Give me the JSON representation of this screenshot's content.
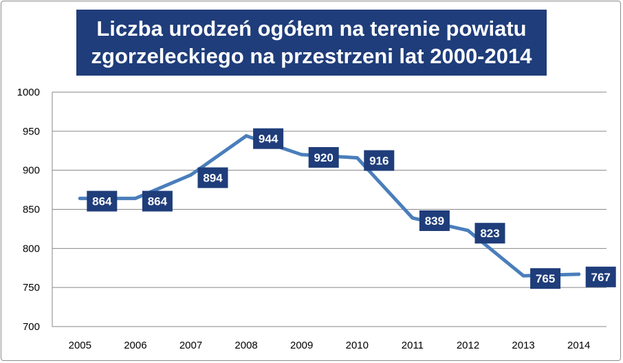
{
  "title_lines": [
    "Liczba urodzeń ogółem na terenie powiatu",
    "zgorzeleckiego na przestrzeni lat 2000-2014"
  ],
  "colors": {
    "line": "#4a7ebb",
    "label_bg": "#1f3d7a",
    "label_text": "#ffffff",
    "grid": "#868686",
    "title_bg": "#1f3d7a"
  },
  "chart_data": {
    "type": "line",
    "title": "Liczba urodzeń ogółem na terenie powiatu zgorzeleckiego na przestrzeni lat 2000-2014",
    "xlabel": "",
    "ylabel": "",
    "categories": [
      "2005",
      "2006",
      "2007",
      "2008",
      "2009",
      "2010",
      "2011",
      "2012",
      "2013",
      "2014"
    ],
    "series": [
      {
        "values": [
          864,
          864,
          894,
          944,
          920,
          916,
          839,
          823,
          765,
          767
        ]
      }
    ],
    "data_labels": [
      "864",
      "864",
      "894",
      "944",
      "920",
      "916",
      "839",
      "823",
      "765",
      "767"
    ],
    "ylim": [
      700,
      1000
    ],
    "yticks": [
      700,
      750,
      800,
      850,
      900,
      950,
      1000
    ],
    "grid": true,
    "legend": "none"
  }
}
